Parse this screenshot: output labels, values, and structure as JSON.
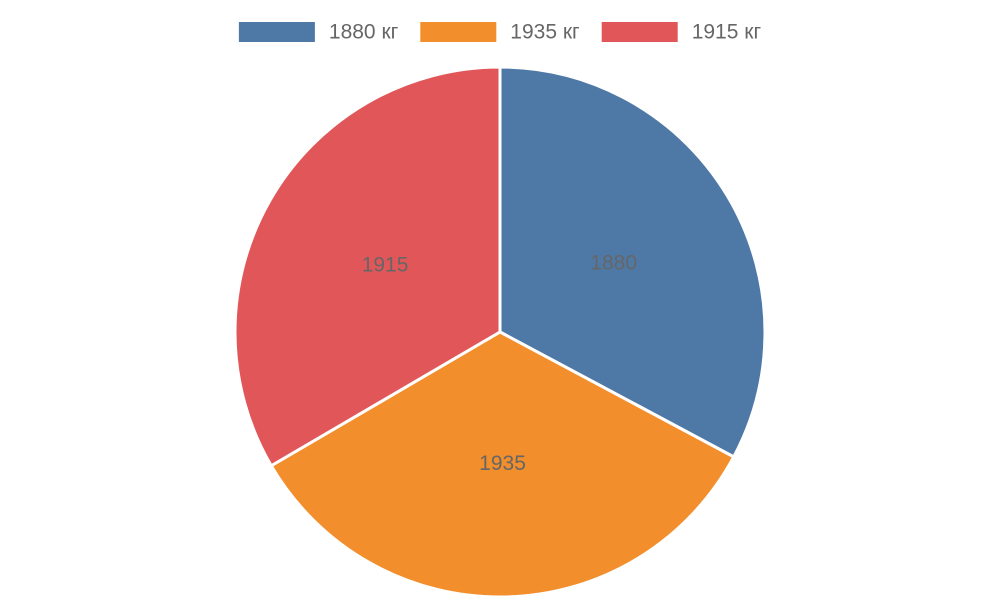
{
  "chart_data": {
    "type": "pie",
    "categories": [
      "1880 кг",
      "1935 кг",
      "1915 кг"
    ],
    "values": [
      1880,
      1935,
      1915
    ],
    "colors": [
      "#4e79a7",
      "#f28e2b",
      "#e15759"
    ],
    "legend": "top"
  }
}
